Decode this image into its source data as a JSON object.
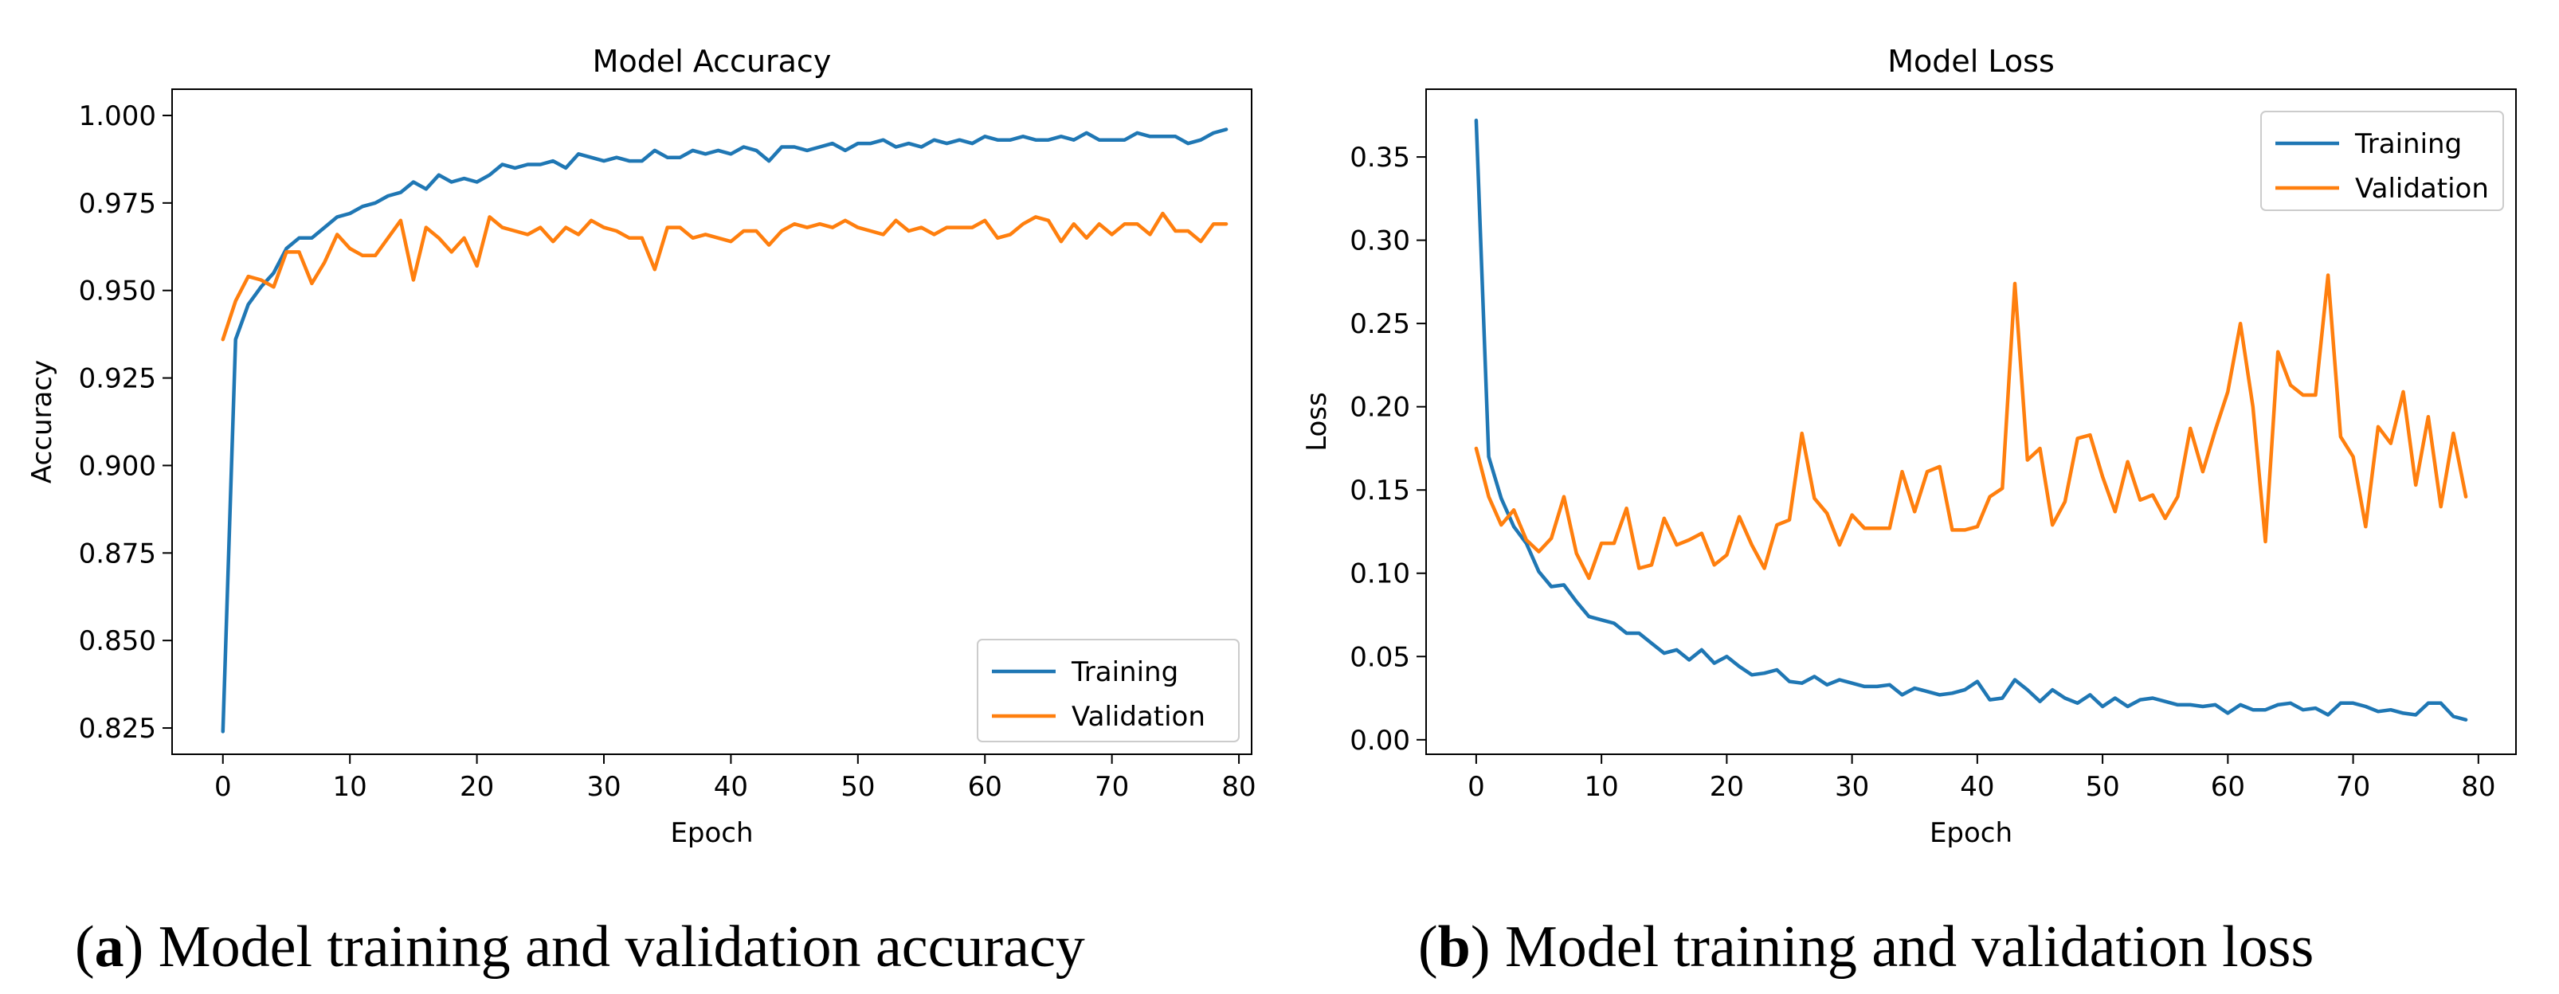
{
  "chart_data": [
    {
      "type": "line",
      "title": "Model Accuracy",
      "xlabel": "Epoch",
      "ylabel": "Accuracy",
      "xlim": [
        -4,
        81
      ],
      "ylim": [
        0.8175,
        1.0075
      ],
      "xticks": [
        0,
        10,
        20,
        30,
        40,
        50,
        60,
        70,
        80
      ],
      "xtick_labels": [
        "0",
        "10",
        "20",
        "30",
        "40",
        "50",
        "60",
        "70",
        "80"
      ],
      "yticks": [
        0.825,
        0.85,
        0.875,
        0.9,
        0.925,
        0.95,
        0.975,
        1.0
      ],
      "ytick_labels": [
        "0.825",
        "0.850",
        "0.875",
        "0.900",
        "0.925",
        "0.950",
        "0.975",
        "1.000"
      ],
      "legend_position": "lower-right",
      "grid": false,
      "x_start": 0,
      "series": [
        {
          "name": "Training",
          "color": "#1f77b4",
          "values": [
            0.824,
            0.936,
            0.946,
            0.951,
            0.955,
            0.962,
            0.965,
            0.965,
            0.968,
            0.971,
            0.972,
            0.974,
            0.975,
            0.977,
            0.978,
            0.981,
            0.979,
            0.983,
            0.981,
            0.982,
            0.981,
            0.983,
            0.986,
            0.985,
            0.986,
            0.986,
            0.987,
            0.985,
            0.989,
            0.988,
            0.987,
            0.988,
            0.987,
            0.987,
            0.99,
            0.988,
            0.988,
            0.99,
            0.989,
            0.99,
            0.989,
            0.991,
            0.99,
            0.987,
            0.991,
            0.991,
            0.99,
            0.991,
            0.992,
            0.99,
            0.992,
            0.992,
            0.993,
            0.991,
            0.992,
            0.991,
            0.993,
            0.992,
            0.993,
            0.992,
            0.994,
            0.993,
            0.993,
            0.994,
            0.993,
            0.993,
            0.994,
            0.993,
            0.995,
            0.993,
            0.993,
            0.993,
            0.995,
            0.994,
            0.994,
            0.994,
            0.992,
            0.993,
            0.995,
            0.996
          ]
        },
        {
          "name": "Validation",
          "color": "#ff7f0e",
          "values": [
            0.936,
            0.947,
            0.954,
            0.953,
            0.951,
            0.961,
            0.961,
            0.952,
            0.958,
            0.966,
            0.962,
            0.96,
            0.96,
            0.965,
            0.97,
            0.953,
            0.968,
            0.965,
            0.961,
            0.965,
            0.957,
            0.971,
            0.968,
            0.967,
            0.966,
            0.968,
            0.964,
            0.968,
            0.966,
            0.97,
            0.968,
            0.967,
            0.965,
            0.965,
            0.956,
            0.968,
            0.968,
            0.965,
            0.966,
            0.965,
            0.964,
            0.967,
            0.967,
            0.963,
            0.967,
            0.969,
            0.968,
            0.969,
            0.968,
            0.97,
            0.968,
            0.967,
            0.966,
            0.97,
            0.967,
            0.968,
            0.966,
            0.968,
            0.968,
            0.968,
            0.97,
            0.965,
            0.966,
            0.969,
            0.971,
            0.97,
            0.964,
            0.969,
            0.965,
            0.969,
            0.966,
            0.969,
            0.969,
            0.966,
            0.972,
            0.967,
            0.967,
            0.964,
            0.969,
            0.969
          ]
        }
      ]
    },
    {
      "type": "line",
      "title": "Model Loss",
      "xlabel": "Epoch",
      "ylabel": "Loss",
      "xlim": [
        -4,
        83
      ],
      "ylim": [
        -0.0087,
        0.3907
      ],
      "xticks": [
        0,
        10,
        20,
        30,
        40,
        50,
        60,
        70,
        80
      ],
      "xtick_labels": [
        "0",
        "10",
        "20",
        "30",
        "40",
        "50",
        "60",
        "70",
        "80"
      ],
      "yticks": [
        0.0,
        0.05,
        0.1,
        0.15,
        0.2,
        0.25,
        0.3,
        0.35
      ],
      "ytick_labels": [
        "0.00",
        "0.05",
        "0.10",
        "0.15",
        "0.20",
        "0.25",
        "0.30",
        "0.35"
      ],
      "legend_position": "top-right",
      "grid": false,
      "x_start": 0,
      "series": [
        {
          "name": "Training",
          "color": "#1f77b4",
          "values": [
            0.372,
            0.17,
            0.145,
            0.128,
            0.118,
            0.101,
            0.092,
            0.093,
            0.083,
            0.074,
            0.072,
            0.07,
            0.064,
            0.064,
            0.058,
            0.052,
            0.054,
            0.048,
            0.054,
            0.046,
            0.05,
            0.044,
            0.039,
            0.04,
            0.042,
            0.035,
            0.034,
            0.038,
            0.033,
            0.036,
            0.034,
            0.032,
            0.032,
            0.033,
            0.027,
            0.031,
            0.029,
            0.027,
            0.028,
            0.03,
            0.035,
            0.024,
            0.025,
            0.036,
            0.03,
            0.023,
            0.03,
            0.025,
            0.022,
            0.027,
            0.02,
            0.025,
            0.02,
            0.024,
            0.025,
            0.023,
            0.021,
            0.021,
            0.02,
            0.021,
            0.016,
            0.021,
            0.018,
            0.018,
            0.021,
            0.022,
            0.018,
            0.019,
            0.015,
            0.022,
            0.022,
            0.02,
            0.017,
            0.018,
            0.016,
            0.015,
            0.022,
            0.022,
            0.014,
            0.012
          ]
        },
        {
          "name": "Validation",
          "color": "#ff7f0e",
          "values": [
            0.175,
            0.146,
            0.129,
            0.138,
            0.12,
            0.113,
            0.121,
            0.146,
            0.112,
            0.097,
            0.118,
            0.118,
            0.139,
            0.103,
            0.105,
            0.133,
            0.117,
            0.12,
            0.124,
            0.105,
            0.111,
            0.134,
            0.117,
            0.103,
            0.129,
            0.132,
            0.184,
            0.145,
            0.136,
            0.117,
            0.135,
            0.127,
            0.127,
            0.127,
            0.161,
            0.137,
            0.161,
            0.164,
            0.126,
            0.126,
            0.128,
            0.146,
            0.151,
            0.274,
            0.168,
            0.175,
            0.129,
            0.143,
            0.181,
            0.183,
            0.158,
            0.137,
            0.167,
            0.144,
            0.147,
            0.133,
            0.146,
            0.187,
            0.161,
            0.186,
            0.209,
            0.25,
            0.2,
            0.119,
            0.233,
            0.213,
            0.207,
            0.207,
            0.279,
            0.182,
            0.17,
            0.128,
            0.188,
            0.178,
            0.209,
            0.153,
            0.194,
            0.14,
            0.184,
            0.146
          ]
        }
      ]
    }
  ],
  "captions": [
    {
      "label": "a",
      "text": ") Model training and validation accuracy"
    },
    {
      "label": "b",
      "text": ") Model training and validation loss"
    }
  ]
}
